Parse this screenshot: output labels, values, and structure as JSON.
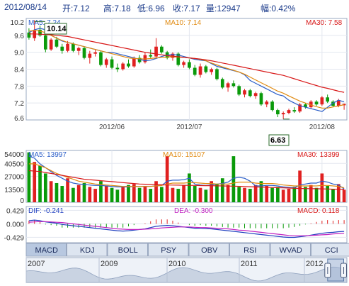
{
  "header": {
    "date": "2012/08/14",
    "open": "开:7.12",
    "high": "高:7.18",
    "low": "低:6.96",
    "close": "收:7.17",
    "volume": "量:12947",
    "change": "幅:0.42%"
  },
  "colors": {
    "up": "#e02020",
    "down": "#0a9a0a",
    "ma5": "#2a5dc8",
    "ma10": "#e08a10",
    "ma30": "#d81818",
    "dif": "#2040c0",
    "dea": "#c020c0",
    "header_text": "#1a3a8a",
    "panel_bg": "#ffffff",
    "tab_bg": "#dde5f0",
    "tab_active_bg": "#b8c8e0"
  },
  "chart_data": [
    {
      "type": "candlestick",
      "legend": {
        "ma5": "MA5: 7.24",
        "ma10": "MA10: 7.14",
        "ma30": "MA30: 7.58"
      },
      "ylim": [
        6.6,
        10.2
      ],
      "y_ticks": [
        "10.2",
        "9.6",
        "9.0",
        "8.4",
        "7.8",
        "7.2",
        "6.6"
      ],
      "x_ticks": [
        "2012/06",
        "2012/07",
        "2012/08"
      ],
      "annotations": {
        "max": "10.14",
        "min": "6.63"
      },
      "series": [
        {
          "name": "MA5",
          "values": [
            9.7,
            9.8,
            9.85,
            9.8,
            9.6,
            9.5,
            9.4,
            9.35,
            9.3,
            9.25,
            9.2,
            9.15,
            9.1,
            9.05,
            9.0,
            9.0,
            8.95,
            8.9,
            8.85,
            8.8,
            8.75,
            8.7,
            8.72,
            8.78,
            8.85,
            8.9,
            8.92,
            8.9,
            8.85,
            8.8,
            8.75,
            8.72,
            8.7,
            8.6,
            8.5,
            8.45,
            8.4,
            8.35,
            8.3,
            8.2,
            8.0,
            7.9,
            7.8,
            7.7,
            7.6,
            7.5,
            7.45,
            7.3,
            7.2,
            7.1,
            7.05,
            7.0,
            6.95,
            6.9,
            7.05,
            7.2,
            7.3,
            7.24
          ]
        },
        {
          "name": "MA10",
          "values": [
            9.75,
            9.78,
            9.75,
            9.7,
            9.6,
            9.5,
            9.42,
            9.35,
            9.3,
            9.25,
            9.2,
            9.15,
            9.1,
            9.05,
            9.0,
            8.95,
            8.9,
            8.85,
            8.8,
            8.78,
            8.77,
            8.76,
            8.78,
            8.8,
            8.82,
            8.83,
            8.84,
            8.83,
            8.82,
            8.8,
            8.78,
            8.75,
            8.7,
            8.62,
            8.55,
            8.48,
            8.42,
            8.36,
            8.3,
            8.22,
            8.12,
            8.02,
            7.92,
            7.82,
            7.72,
            7.62,
            7.55,
            7.45,
            7.36,
            7.27,
            7.2,
            7.13,
            7.07,
            7.02,
            7.02,
            7.06,
            7.1,
            7.14
          ]
        },
        {
          "name": "MA30",
          "values": [
            9.65,
            9.65,
            9.64,
            9.63,
            9.62,
            9.6,
            9.58,
            9.56,
            9.52,
            9.48,
            9.44,
            9.4,
            9.36,
            9.32,
            9.28,
            9.24,
            9.2,
            9.16,
            9.12,
            9.08,
            9.04,
            9.0,
            8.97,
            8.94,
            8.91,
            8.88,
            8.86,
            8.84,
            8.82,
            8.8,
            8.78,
            8.76,
            8.73,
            8.7,
            8.66,
            8.62,
            8.58,
            8.54,
            8.5,
            8.46,
            8.42,
            8.38,
            8.34,
            8.3,
            8.26,
            8.22,
            8.18,
            8.12,
            8.06,
            8.0,
            7.94,
            7.88,
            7.82,
            7.76,
            7.72,
            7.67,
            7.62,
            7.58
          ]
        }
      ],
      "ohlc": [
        [
          9.7,
          9.85,
          9.45,
          9.52
        ],
        [
          9.5,
          10.14,
          9.4,
          9.78
        ],
        [
          9.8,
          9.95,
          9.55,
          9.6
        ],
        [
          9.6,
          9.65,
          9.0,
          9.1
        ],
        [
          9.1,
          9.5,
          9.05,
          9.45
        ],
        [
          9.45,
          9.55,
          9.15,
          9.2
        ],
        [
          9.2,
          9.3,
          8.95,
          9.05
        ],
        [
          9.05,
          9.4,
          9.0,
          9.3
        ],
        [
          9.3,
          9.35,
          9.0,
          9.05
        ],
        [
          9.05,
          9.2,
          8.9,
          9.15
        ],
        [
          9.15,
          9.2,
          8.75,
          8.8
        ],
        [
          8.8,
          9.05,
          8.6,
          8.95
        ],
        [
          8.95,
          9.1,
          8.85,
          9.0
        ],
        [
          9.0,
          9.05,
          8.5,
          8.55
        ],
        [
          8.55,
          8.8,
          8.45,
          8.75
        ],
        [
          8.75,
          8.85,
          8.4,
          8.45
        ],
        [
          8.45,
          8.6,
          8.3,
          8.4
        ],
        [
          8.4,
          8.65,
          8.35,
          8.6
        ],
        [
          8.6,
          8.75,
          8.45,
          8.5
        ],
        [
          8.5,
          8.85,
          8.45,
          8.8
        ],
        [
          8.8,
          8.9,
          8.6,
          8.65
        ],
        [
          8.65,
          9.0,
          8.6,
          8.9
        ],
        [
          8.9,
          9.1,
          8.8,
          8.85
        ],
        [
          8.85,
          9.5,
          8.8,
          9.2
        ],
        [
          9.2,
          9.25,
          8.95,
          9.0
        ],
        [
          9.0,
          9.05,
          8.75,
          8.8
        ],
        [
          8.8,
          9.0,
          8.7,
          8.95
        ],
        [
          8.95,
          9.0,
          8.5,
          8.55
        ],
        [
          8.55,
          8.7,
          8.45,
          8.65
        ],
        [
          8.65,
          8.75,
          8.4,
          8.45
        ],
        [
          8.45,
          8.55,
          8.15,
          8.2
        ],
        [
          8.2,
          8.6,
          8.1,
          8.5
        ],
        [
          8.5,
          8.55,
          8.25,
          8.3
        ],
        [
          8.3,
          8.45,
          8.2,
          8.4
        ],
        [
          8.4,
          8.45,
          8.0,
          8.05
        ],
        [
          8.05,
          8.1,
          7.7,
          7.75
        ],
        [
          7.75,
          7.95,
          7.6,
          7.9
        ],
        [
          7.9,
          8.0,
          7.75,
          7.8
        ],
        [
          7.8,
          7.85,
          7.45,
          7.5
        ],
        [
          7.5,
          7.7,
          7.4,
          7.65
        ],
        [
          7.65,
          7.7,
          7.4,
          7.45
        ],
        [
          7.45,
          7.6,
          7.35,
          7.55
        ],
        [
          7.55,
          7.6,
          7.1,
          7.15
        ],
        [
          7.15,
          7.3,
          7.05,
          7.25
        ],
        [
          7.25,
          7.3,
          6.9,
          6.95
        ],
        [
          6.95,
          7.0,
          6.7,
          6.8
        ],
        [
          6.8,
          6.9,
          6.63,
          6.85
        ],
        [
          6.85,
          7.0,
          6.8,
          6.95
        ],
        [
          6.95,
          7.05,
          6.85,
          6.9
        ],
        [
          6.9,
          7.2,
          6.85,
          7.15
        ],
        [
          7.15,
          7.2,
          7.0,
          7.05
        ],
        [
          7.05,
          7.3,
          7.0,
          7.25
        ],
        [
          7.25,
          7.3,
          7.1,
          7.15
        ],
        [
          7.15,
          7.45,
          7.1,
          7.4
        ],
        [
          7.4,
          7.5,
          7.2,
          7.25
        ],
        [
          7.25,
          7.3,
          7.05,
          7.1
        ],
        [
          7.1,
          7.35,
          7.05,
          7.3
        ],
        [
          7.12,
          7.18,
          6.96,
          7.17
        ]
      ]
    },
    {
      "type": "bar",
      "legend": {
        "ma5": "MA5: 13997",
        "ma10": "MA10: 15107",
        "ma30": "MA30: 13399"
      },
      "ylim": [
        0,
        54000
      ],
      "y_ticks": [
        "54000",
        "40500",
        "27000",
        "13500",
        "0"
      ],
      "x_ticks": [
        "2012/06",
        "2012/07",
        "2012/08"
      ],
      "values": [
        52000,
        42000,
        38000,
        30000,
        22000,
        20000,
        17000,
        25000,
        15000,
        18000,
        20000,
        16000,
        14000,
        22000,
        17000,
        15000,
        13000,
        16000,
        18000,
        19000,
        15000,
        17000,
        14000,
        22000,
        16000,
        48000,
        15000,
        14000,
        18000,
        30000,
        17000,
        15000,
        13000,
        22000,
        19000,
        25000,
        18000,
        48000,
        16000,
        15000,
        14000,
        18000,
        22000,
        17000,
        15000,
        16000,
        13000,
        14000,
        16000,
        33000,
        16000,
        18000,
        15000,
        30000,
        17000,
        14000,
        19000,
        12947
      ],
      "up": [
        false,
        true,
        false,
        false,
        true,
        false,
        false,
        true,
        false,
        true,
        false,
        true,
        true,
        false,
        true,
        false,
        false,
        true,
        false,
        true,
        false,
        true,
        false,
        true,
        false,
        true,
        true,
        false,
        true,
        false,
        false,
        true,
        false,
        true,
        false,
        false,
        true,
        false,
        false,
        true,
        false,
        true,
        false,
        true,
        false,
        false,
        true,
        true,
        false,
        true,
        false,
        true,
        false,
        true,
        false,
        false,
        true,
        true
      ],
      "series": [
        {
          "name": "MA5",
          "values": [
            48000,
            46000,
            40000,
            36000,
            32000,
            28000,
            25000,
            22000,
            20000,
            19000,
            18500,
            18000,
            17500,
            17500,
            17000,
            16500,
            16000,
            16000,
            16000,
            16500,
            16500,
            16500,
            16500,
            17000,
            17500,
            22000,
            23000,
            23000,
            23500,
            25000,
            19000,
            18000,
            17500,
            18000,
            19000,
            19500,
            21000,
            25000,
            26000,
            25000,
            22000,
            17000,
            17000,
            17500,
            17500,
            17000,
            16000,
            15500,
            15000,
            18000,
            19000,
            20000,
            20000,
            22000,
            21000,
            19000,
            18000,
            13997
          ]
        },
        {
          "name": "MA10",
          "values": [
            40000,
            40000,
            38000,
            36000,
            33000,
            30000,
            28000,
            26000,
            24000,
            22000,
            21000,
            20000,
            19000,
            18500,
            18000,
            17500,
            17000,
            16500,
            16500,
            16500,
            16500,
            16500,
            16500,
            17000,
            17500,
            19000,
            20000,
            20000,
            20000,
            20500,
            20500,
            20000,
            19500,
            19500,
            19000,
            19000,
            19000,
            20000,
            21000,
            21000,
            21000,
            20000,
            19500,
            19500,
            19500,
            19000,
            18000,
            17500,
            17000,
            17000,
            17000,
            17000,
            17000,
            17500,
            17500,
            17000,
            16500,
            15107
          ]
        },
        {
          "name": "MA30",
          "values": [
            33000,
            32500,
            32000,
            31000,
            30000,
            29000,
            28000,
            27000,
            26000,
            25000,
            24000,
            23500,
            23000,
            22500,
            22000,
            21500,
            21000,
            20500,
            20000,
            19500,
            19000,
            18800,
            18600,
            18400,
            18200,
            18000,
            17900,
            17800,
            17700,
            17600,
            17500,
            17400,
            17300,
            17200,
            17100,
            17000,
            16900,
            16800,
            16600,
            16400,
            16200,
            16000,
            15800,
            15600,
            15400,
            15200,
            15000,
            14800,
            14600,
            14400,
            14300,
            14200,
            14100,
            14000,
            13800,
            13600,
            13500,
            13399
          ]
        }
      ]
    },
    {
      "type": "line",
      "legend": {
        "dif": "DIF: -0.241",
        "dea": "DEA: -0.300",
        "macd": "MACD: 0.118"
      },
      "ylim": [
        -0.6,
        0.55
      ],
      "y_ticks": [
        "0.429",
        "0.000",
        "-0.429"
      ],
      "series": [
        {
          "name": "DIF",
          "values": [
            0.1,
            0.12,
            0.1,
            0.06,
            0.04,
            0.02,
            -0.02,
            -0.04,
            -0.06,
            -0.08,
            -0.1,
            -0.12,
            -0.14,
            -0.16,
            -0.18,
            -0.2,
            -0.22,
            -0.23,
            -0.22,
            -0.2,
            -0.18,
            -0.16,
            -0.12,
            -0.08,
            -0.06,
            -0.05,
            -0.06,
            -0.08,
            -0.1,
            -0.12,
            -0.14,
            -0.14,
            -0.15,
            -0.16,
            -0.18,
            -0.2,
            -0.22,
            -0.24,
            -0.26,
            -0.28,
            -0.3,
            -0.32,
            -0.34,
            -0.36,
            -0.38,
            -0.4,
            -0.42,
            -0.43,
            -0.43,
            -0.41,
            -0.39,
            -0.36,
            -0.33,
            -0.3,
            -0.28,
            -0.27,
            -0.25,
            -0.241
          ]
        },
        {
          "name": "DEA",
          "values": [
            0.05,
            0.06,
            0.07,
            0.07,
            0.06,
            0.05,
            0.04,
            0.02,
            0.0,
            -0.02,
            -0.04,
            -0.06,
            -0.08,
            -0.1,
            -0.12,
            -0.14,
            -0.16,
            -0.17,
            -0.18,
            -0.18,
            -0.18,
            -0.17,
            -0.16,
            -0.15,
            -0.13,
            -0.12,
            -0.11,
            -0.1,
            -0.1,
            -0.1,
            -0.11,
            -0.12,
            -0.12,
            -0.13,
            -0.14,
            -0.15,
            -0.16,
            -0.18,
            -0.2,
            -0.21,
            -0.23,
            -0.25,
            -0.27,
            -0.29,
            -0.31,
            -0.33,
            -0.35,
            -0.37,
            -0.38,
            -0.38,
            -0.38,
            -0.37,
            -0.36,
            -0.35,
            -0.34,
            -0.32,
            -0.31,
            -0.3
          ]
        },
        {
          "name": "MACD",
          "values": [
            0.1,
            0.12,
            0.06,
            -0.02,
            -0.04,
            -0.06,
            -0.12,
            -0.12,
            -0.12,
            -0.12,
            -0.12,
            -0.12,
            -0.12,
            -0.12,
            -0.12,
            -0.12,
            -0.12,
            -0.12,
            -0.08,
            -0.04,
            0.0,
            0.02,
            0.08,
            0.14,
            0.14,
            0.14,
            0.1,
            0.04,
            0.0,
            -0.04,
            -0.06,
            -0.04,
            -0.06,
            -0.06,
            -0.08,
            -0.1,
            -0.12,
            -0.12,
            -0.12,
            -0.14,
            -0.14,
            -0.14,
            -0.14,
            -0.14,
            -0.14,
            -0.14,
            -0.14,
            -0.12,
            -0.1,
            -0.06,
            -0.02,
            0.02,
            0.06,
            0.1,
            0.12,
            0.1,
            0.12,
            0.118
          ]
        }
      ]
    }
  ],
  "tabs": [
    {
      "label": "MACD",
      "active": true
    },
    {
      "label": "KDJ",
      "active": false
    },
    {
      "label": "BOLL",
      "active": false
    },
    {
      "label": "PSY",
      "active": false
    },
    {
      "label": "OBV",
      "active": false
    },
    {
      "label": "RSI",
      "active": false
    },
    {
      "label": "WVAD",
      "active": false
    },
    {
      "label": "CCI",
      "active": false
    }
  ],
  "timeline": {
    "years": [
      "2007",
      "2009",
      "2010",
      "2011",
      "2012"
    ],
    "selection": [
      0.94,
      0.99
    ]
  }
}
